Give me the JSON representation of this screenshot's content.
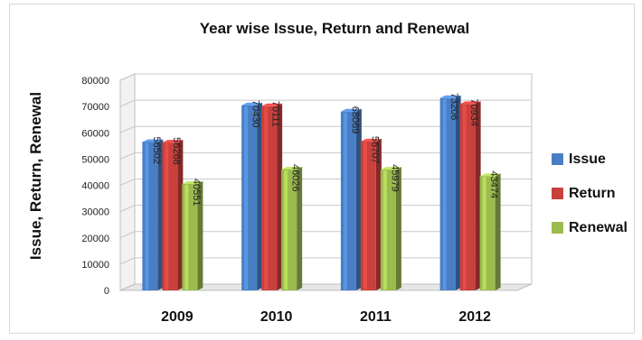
{
  "chart_data": {
    "type": "bar",
    "title": "Year wise Issue, Return and Renewal",
    "ylabel": "Issue, Return, Renewal",
    "xlabel": "",
    "categories": [
      "2009",
      "2010",
      "2011",
      "2012"
    ],
    "series": [
      {
        "name": "Issue",
        "values": [
          56502,
          70430,
          68069,
          73206
        ],
        "color": "#4a7ec4"
      },
      {
        "name": "Return",
        "values": [
          56268,
          70111,
          56707,
          70934
        ],
        "color": "#c9403d"
      },
      {
        "name": "Renewal",
        "values": [
          40551,
          46026,
          45979,
          43474
        ],
        "color": "#9bbb4f"
      }
    ],
    "data_labels": [
      [
        "56502",
        "56268",
        "40551"
      ],
      [
        "70430",
        "70111",
        "46026"
      ],
      [
        "68069",
        "56707",
        "45979"
      ],
      [
        "73206",
        "70934",
        "43474"
      ]
    ],
    "ylim": [
      0,
      80000
    ],
    "yticks": [
      "0",
      "10000",
      "20000",
      "30000",
      "40000",
      "50000",
      "60000",
      "70000",
      "80000"
    ],
    "grid": true,
    "legend_position": "right"
  }
}
